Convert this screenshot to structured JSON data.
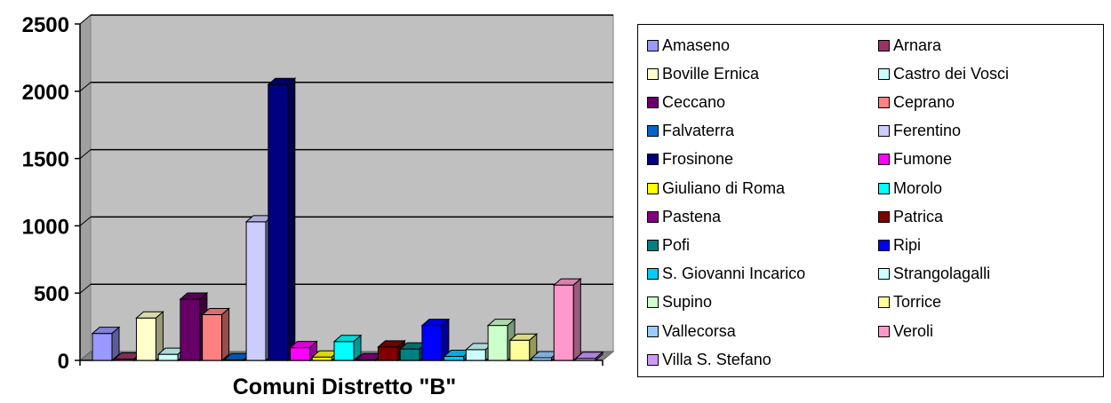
{
  "chart_data": {
    "type": "bar",
    "title": "",
    "xlabel": "Comuni Distretto \"B\"",
    "ylabel": "",
    "ylim": [
      0,
      2500
    ],
    "yticks": [
      "0",
      "500",
      "1000",
      "1500",
      "2000",
      "2500"
    ],
    "grid": true,
    "legend_position": "right",
    "plot_background": "#c0c0c0",
    "series": [
      {
        "name": "Amaseno",
        "value": 200,
        "color": "#9999ff"
      },
      {
        "name": "Arnara",
        "value": 10,
        "color": "#993366"
      },
      {
        "name": "Boville Ernica",
        "value": 315,
        "color": "#ffffcc"
      },
      {
        "name": "Castro dei Vosci",
        "value": 45,
        "color": "#ccffff"
      },
      {
        "name": "Ceccano",
        "value": 455,
        "color": "#660066"
      },
      {
        "name": "Ceprano",
        "value": 340,
        "color": "#ff8080"
      },
      {
        "name": "Falvaterra",
        "value": 5,
        "color": "#0066cc"
      },
      {
        "name": "Ferentino",
        "value": 1030,
        "color": "#ccccff"
      },
      {
        "name": "Frosinone",
        "value": 2050,
        "color": "#000080"
      },
      {
        "name": "Fumone",
        "value": 95,
        "color": "#ff00ff"
      },
      {
        "name": "Giuliano di Roma",
        "value": 25,
        "color": "#ffff00"
      },
      {
        "name": "Morolo",
        "value": 140,
        "color": "#00ffff"
      },
      {
        "name": "Pastena",
        "value": 5,
        "color": "#800080"
      },
      {
        "name": "Patrica",
        "value": 100,
        "color": "#800000"
      },
      {
        "name": "Pofi",
        "value": 85,
        "color": "#008080"
      },
      {
        "name": "Ripi",
        "value": 260,
        "color": "#0000ff"
      },
      {
        "name": "S. Giovanni Incarico",
        "value": 30,
        "color": "#00ccff"
      },
      {
        "name": "Strangolagalli",
        "value": 80,
        "color": "#ccffff"
      },
      {
        "name": "Supino",
        "value": 260,
        "color": "#ccffcc"
      },
      {
        "name": "Torrice",
        "value": 150,
        "color": "#ffff99"
      },
      {
        "name": "Vallecorsa",
        "value": 20,
        "color": "#99ccff"
      },
      {
        "name": "Veroli",
        "value": 560,
        "color": "#ff99cc"
      },
      {
        "name": "Villa S. Stefano",
        "value": 15,
        "color": "#cc99ff"
      }
    ]
  }
}
